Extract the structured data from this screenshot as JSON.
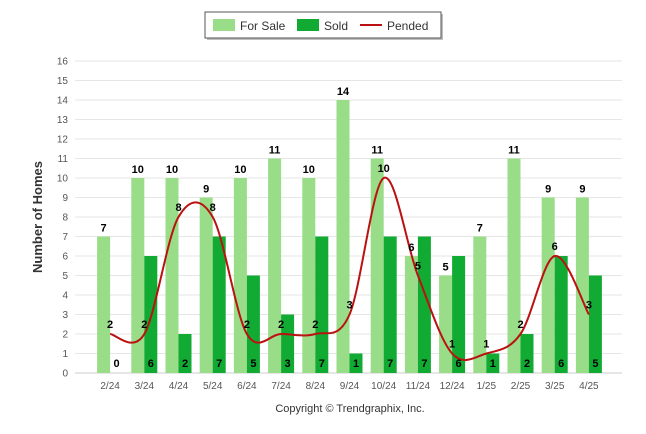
{
  "chart_data": {
    "type": "bar",
    "ylabel": "Number of Homes",
    "xlabel": "",
    "ylim": [
      0,
      16
    ],
    "yticks": [
      "0",
      "1",
      "2",
      "3",
      "4",
      "5",
      "6",
      "7",
      "8",
      "9",
      "10",
      "11",
      "12",
      "13",
      "14",
      "15",
      "16"
    ],
    "grid": true,
    "legend_position": "top-center",
    "categories": [
      "2/24",
      "3/24",
      "4/24",
      "5/24",
      "6/24",
      "7/24",
      "8/24",
      "9/24",
      "10/24",
      "11/24",
      "12/24",
      "1/25",
      "2/25",
      "3/25",
      "4/25"
    ],
    "series": [
      {
        "name": "For Sale",
        "kind": "bar",
        "color": "#99dd88",
        "values": [
          7,
          10,
          10,
          9,
          10,
          11,
          10,
          14,
          11,
          6,
          5,
          7,
          11,
          9,
          9
        ],
        "labels": [
          "7",
          "10",
          "10",
          "9",
          "10",
          "11",
          "10",
          "14",
          "11",
          "6",
          "5",
          "7",
          "11",
          "9",
          "9"
        ]
      },
      {
        "name": "Sold",
        "kind": "bar",
        "color": "#11aa33",
        "values": [
          0,
          6,
          2,
          7,
          5,
          3,
          7,
          1,
          7,
          7,
          6,
          1,
          2,
          6,
          5
        ],
        "labels": [
          "0",
          "6",
          "2",
          "7",
          "5",
          "3",
          "7",
          "1",
          "7",
          "7",
          "6",
          "1",
          "2",
          "6",
          "5"
        ]
      },
      {
        "name": "Pended",
        "kind": "line",
        "color": "#bb1111",
        "values": [
          2,
          2,
          8,
          8,
          2,
          2,
          2,
          3,
          10,
          5,
          1,
          1,
          2,
          6,
          3
        ],
        "labels": [
          "2",
          "2",
          "8",
          "8",
          "2",
          "2",
          "2",
          "3",
          "10",
          "5",
          "1",
          "1",
          "2",
          "6",
          "3"
        ]
      }
    ]
  },
  "footer": "Copyright © Trendgraphix, Inc."
}
